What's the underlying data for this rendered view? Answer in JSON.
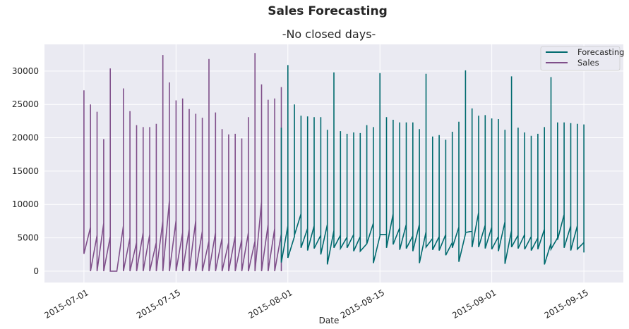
{
  "suptitle": "Sales Forecasting",
  "chart_data": {
    "type": "line",
    "title": "-No closed days-",
    "xlabel": "Date",
    "ylabel": "",
    "x_range": [
      "2015-06-25",
      "2015-09-21"
    ],
    "ylim": [
      -1700,
      34000
    ],
    "grid": true,
    "background": "#eaeaf2",
    "legend_position": "top-right",
    "y_ticks": [
      0,
      5000,
      10000,
      15000,
      20000,
      25000,
      30000
    ],
    "x_ticks": [
      "2015-07-01",
      "2015-07-15",
      "2015-08-01",
      "2015-08-15",
      "2015-09-01",
      "2015-09-15"
    ],
    "series": [
      {
        "name": "Forecasting",
        "color": "#006a6e",
        "points": [
          [
            "2015-07-31",
            8200
          ],
          [
            "2015-07-31",
            21500
          ],
          [
            "2015-07-31",
            1300
          ],
          [
            "2015-08-01",
            6800
          ],
          [
            "2015-08-01",
            30900
          ],
          [
            "2015-08-01",
            2000
          ],
          [
            "2015-08-02",
            5200
          ],
          [
            "2015-08-02",
            25000
          ],
          [
            "2015-08-02",
            5400
          ],
          [
            "2015-08-03",
            8600
          ],
          [
            "2015-08-03",
            23300
          ],
          [
            "2015-08-03",
            3500
          ],
          [
            "2015-08-04",
            6400
          ],
          [
            "2015-08-04",
            23200
          ],
          [
            "2015-08-04",
            3100
          ],
          [
            "2015-08-05",
            6800
          ],
          [
            "2015-08-05",
            23100
          ],
          [
            "2015-08-05",
            3400
          ],
          [
            "2015-08-06",
            5400
          ],
          [
            "2015-08-06",
            23100
          ],
          [
            "2015-08-06",
            2500
          ],
          [
            "2015-08-07",
            7000
          ],
          [
            "2015-08-07",
            21200
          ],
          [
            "2015-08-07",
            1000
          ],
          [
            "2015-08-08",
            6100
          ],
          [
            "2015-08-08",
            29800
          ],
          [
            "2015-08-08",
            3500
          ],
          [
            "2015-08-09",
            5400
          ],
          [
            "2015-08-09",
            21000
          ],
          [
            "2015-08-09",
            3400
          ],
          [
            "2015-08-10",
            5100
          ],
          [
            "2015-08-10",
            20600
          ],
          [
            "2015-08-10",
            3500
          ],
          [
            "2015-08-11",
            5500
          ],
          [
            "2015-08-11",
            20800
          ],
          [
            "2015-08-11",
            3000
          ],
          [
            "2015-08-12",
            5200
          ],
          [
            "2015-08-12",
            20700
          ],
          [
            "2015-08-12",
            3000
          ],
          [
            "2015-08-13",
            4100
          ],
          [
            "2015-08-13",
            21900
          ],
          [
            "2015-08-13",
            4100
          ],
          [
            "2015-08-14",
            7200
          ],
          [
            "2015-08-14",
            21600
          ],
          [
            "2015-08-14",
            1200
          ],
          [
            "2015-08-15",
            5300
          ],
          [
            "2015-08-15",
            29700
          ],
          [
            "2015-08-15",
            5500
          ],
          [
            "2015-08-16",
            5500
          ],
          [
            "2015-08-16",
            23100
          ],
          [
            "2015-08-16",
            3500
          ],
          [
            "2015-08-17",
            8600
          ],
          [
            "2015-08-17",
            22700
          ],
          [
            "2015-08-17",
            4000
          ],
          [
            "2015-08-18",
            6500
          ],
          [
            "2015-08-18",
            22300
          ],
          [
            "2015-08-18",
            3200
          ],
          [
            "2015-08-19",
            7000
          ],
          [
            "2015-08-19",
            22300
          ],
          [
            "2015-08-19",
            3400
          ],
          [
            "2015-08-20",
            5300
          ],
          [
            "2015-08-20",
            22300
          ],
          [
            "2015-08-20",
            3000
          ],
          [
            "2015-08-21",
            7000
          ],
          [
            "2015-08-21",
            21300
          ],
          [
            "2015-08-21",
            1200
          ],
          [
            "2015-08-22",
            5900
          ],
          [
            "2015-08-22",
            29600
          ],
          [
            "2015-08-22",
            3600
          ],
          [
            "2015-08-23",
            4900
          ],
          [
            "2015-08-23",
            20200
          ],
          [
            "2015-08-23",
            3200
          ],
          [
            "2015-08-24",
            5200
          ],
          [
            "2015-08-24",
            20400
          ],
          [
            "2015-08-24",
            3100
          ],
          [
            "2015-08-25",
            5500
          ],
          [
            "2015-08-25",
            19700
          ],
          [
            "2015-08-25",
            2400
          ],
          [
            "2015-08-26",
            4300
          ],
          [
            "2015-08-26",
            20900
          ],
          [
            "2015-08-26",
            3500
          ],
          [
            "2015-08-27",
            6600
          ],
          [
            "2015-08-27",
            22400
          ],
          [
            "2015-08-27",
            1400
          ],
          [
            "2015-08-28",
            5600
          ],
          [
            "2015-08-28",
            30100
          ],
          [
            "2015-08-28",
            5800
          ],
          [
            "2015-08-29",
            6000
          ],
          [
            "2015-08-29",
            24400
          ],
          [
            "2015-08-29",
            3600
          ],
          [
            "2015-08-30",
            8800
          ],
          [
            "2015-08-30",
            23300
          ],
          [
            "2015-08-30",
            3600
          ],
          [
            "2015-08-31",
            6900
          ],
          [
            "2015-08-31",
            23400
          ],
          [
            "2015-08-31",
            3400
          ],
          [
            "2015-09-01",
            6600
          ],
          [
            "2015-09-01",
            22900
          ],
          [
            "2015-09-01",
            3300
          ],
          [
            "2015-09-02",
            5200
          ],
          [
            "2015-09-02",
            22800
          ],
          [
            "2015-09-02",
            3000
          ],
          [
            "2015-09-03",
            7400
          ],
          [
            "2015-09-03",
            21200
          ],
          [
            "2015-09-03",
            1100
          ],
          [
            "2015-09-04",
            6100
          ],
          [
            "2015-09-04",
            29200
          ],
          [
            "2015-09-04",
            3600
          ],
          [
            "2015-09-05",
            5400
          ],
          [
            "2015-09-05",
            21500
          ],
          [
            "2015-09-05",
            3400
          ],
          [
            "2015-09-06",
            5500
          ],
          [
            "2015-09-06",
            20800
          ],
          [
            "2015-09-06",
            3300
          ],
          [
            "2015-09-07",
            5200
          ],
          [
            "2015-09-07",
            20300
          ],
          [
            "2015-09-07",
            3100
          ],
          [
            "2015-09-08",
            5000
          ],
          [
            "2015-09-08",
            20600
          ],
          [
            "2015-09-08",
            3300
          ],
          [
            "2015-09-09",
            6300
          ],
          [
            "2015-09-09",
            21600
          ],
          [
            "2015-09-09",
            1000
          ],
          [
            "2015-09-10",
            4200
          ],
          [
            "2015-09-10",
            29100
          ],
          [
            "2015-09-10",
            3300
          ],
          [
            "2015-09-11",
            5000
          ],
          [
            "2015-09-11",
            22300
          ],
          [
            "2015-09-11",
            4700
          ],
          [
            "2015-09-12",
            8500
          ],
          [
            "2015-09-12",
            22300
          ],
          [
            "2015-09-12",
            3500
          ],
          [
            "2015-09-13",
            6800
          ],
          [
            "2015-09-13",
            22200
          ],
          [
            "2015-09-13",
            3100
          ],
          [
            "2015-09-14",
            6800
          ],
          [
            "2015-09-14",
            22100
          ],
          [
            "2015-09-14",
            3300
          ],
          [
            "2015-09-15",
            4300
          ],
          [
            "2015-09-15",
            22000
          ],
          [
            "2015-09-15",
            2800
          ]
        ]
      },
      {
        "name": "Sales",
        "color": "#7f4f8a",
        "points": [
          [
            "2015-07-01",
            7800
          ],
          [
            "2015-07-01",
            27100
          ],
          [
            "2015-07-01",
            2600
          ],
          [
            "2015-07-02",
            6600
          ],
          [
            "2015-07-02",
            25000
          ],
          [
            "2015-07-02",
            0
          ],
          [
            "2015-07-03",
            5400
          ],
          [
            "2015-07-03",
            23900
          ],
          [
            "2015-07-03",
            0
          ],
          [
            "2015-07-04",
            7200
          ],
          [
            "2015-07-04",
            19800
          ],
          [
            "2015-07-04",
            0
          ],
          [
            "2015-07-05",
            5200
          ],
          [
            "2015-07-05",
            30400
          ],
          [
            "2015-07-05",
            0
          ],
          [
            "2015-07-06",
            0
          ],
          [
            "2015-07-06",
            0
          ],
          [
            "2015-07-06",
            0
          ],
          [
            "2015-07-07",
            6800
          ],
          [
            "2015-07-07",
            27400
          ],
          [
            "2015-07-07",
            0
          ],
          [
            "2015-07-08",
            5000
          ],
          [
            "2015-07-08",
            24000
          ],
          [
            "2015-07-08",
            0
          ],
          [
            "2015-07-09",
            4300
          ],
          [
            "2015-07-09",
            21900
          ],
          [
            "2015-07-09",
            0
          ],
          [
            "2015-07-10",
            5800
          ],
          [
            "2015-07-10",
            21600
          ],
          [
            "2015-07-10",
            0
          ],
          [
            "2015-07-11",
            5500
          ],
          [
            "2015-07-11",
            21600
          ],
          [
            "2015-07-11",
            0
          ],
          [
            "2015-07-12",
            4300
          ],
          [
            "2015-07-12",
            22100
          ],
          [
            "2015-07-12",
            0
          ],
          [
            "2015-07-13",
            7500
          ],
          [
            "2015-07-13",
            32400
          ],
          [
            "2015-07-13",
            0
          ],
          [
            "2015-07-14",
            10600
          ],
          [
            "2015-07-14",
            28300
          ],
          [
            "2015-07-14",
            0
          ],
          [
            "2015-07-15",
            7600
          ],
          [
            "2015-07-15",
            25600
          ],
          [
            "2015-07-15",
            0
          ],
          [
            "2015-07-16",
            5800
          ],
          [
            "2015-07-16",
            25900
          ],
          [
            "2015-07-16",
            0
          ],
          [
            "2015-07-17",
            6300
          ],
          [
            "2015-07-17",
            24300
          ],
          [
            "2015-07-17",
            0
          ],
          [
            "2015-07-18",
            7600
          ],
          [
            "2015-07-18",
            23600
          ],
          [
            "2015-07-18",
            0
          ],
          [
            "2015-07-19",
            6000
          ],
          [
            "2015-07-19",
            23000
          ],
          [
            "2015-07-19",
            0
          ],
          [
            "2015-07-20",
            4500
          ],
          [
            "2015-07-20",
            31800
          ],
          [
            "2015-07-20",
            0
          ],
          [
            "2015-07-21",
            5800
          ],
          [
            "2015-07-21",
            23800
          ],
          [
            "2015-07-21",
            0
          ],
          [
            "2015-07-22",
            5000
          ],
          [
            "2015-07-22",
            21300
          ],
          [
            "2015-07-22",
            0
          ],
          [
            "2015-07-23",
            4300
          ],
          [
            "2015-07-23",
            20500
          ],
          [
            "2015-07-23",
            0
          ],
          [
            "2015-07-24",
            5300
          ],
          [
            "2015-07-24",
            20600
          ],
          [
            "2015-07-24",
            0
          ],
          [
            "2015-07-25",
            4800
          ],
          [
            "2015-07-25",
            19900
          ],
          [
            "2015-07-25",
            0
          ],
          [
            "2015-07-26",
            5800
          ],
          [
            "2015-07-26",
            23100
          ],
          [
            "2015-07-26",
            0
          ],
          [
            "2015-07-27",
            4500
          ],
          [
            "2015-07-27",
            32700
          ],
          [
            "2015-07-27",
            0
          ],
          [
            "2015-07-28",
            10400
          ],
          [
            "2015-07-28",
            28000
          ],
          [
            "2015-07-28",
            0
          ],
          [
            "2015-07-29",
            7000
          ],
          [
            "2015-07-29",
            25700
          ],
          [
            "2015-07-29",
            0
          ],
          [
            "2015-07-30",
            6400
          ],
          [
            "2015-07-30",
            25900
          ],
          [
            "2015-07-30",
            0
          ],
          [
            "2015-07-31",
            5600
          ],
          [
            "2015-07-31",
            24500
          ],
          [
            "2015-07-31",
            0
          ],
          [
            "2015-07-31",
            8200
          ],
          [
            "2015-07-31",
            27600
          ],
          [
            "2015-07-31",
            5000
          ]
        ]
      }
    ]
  }
}
